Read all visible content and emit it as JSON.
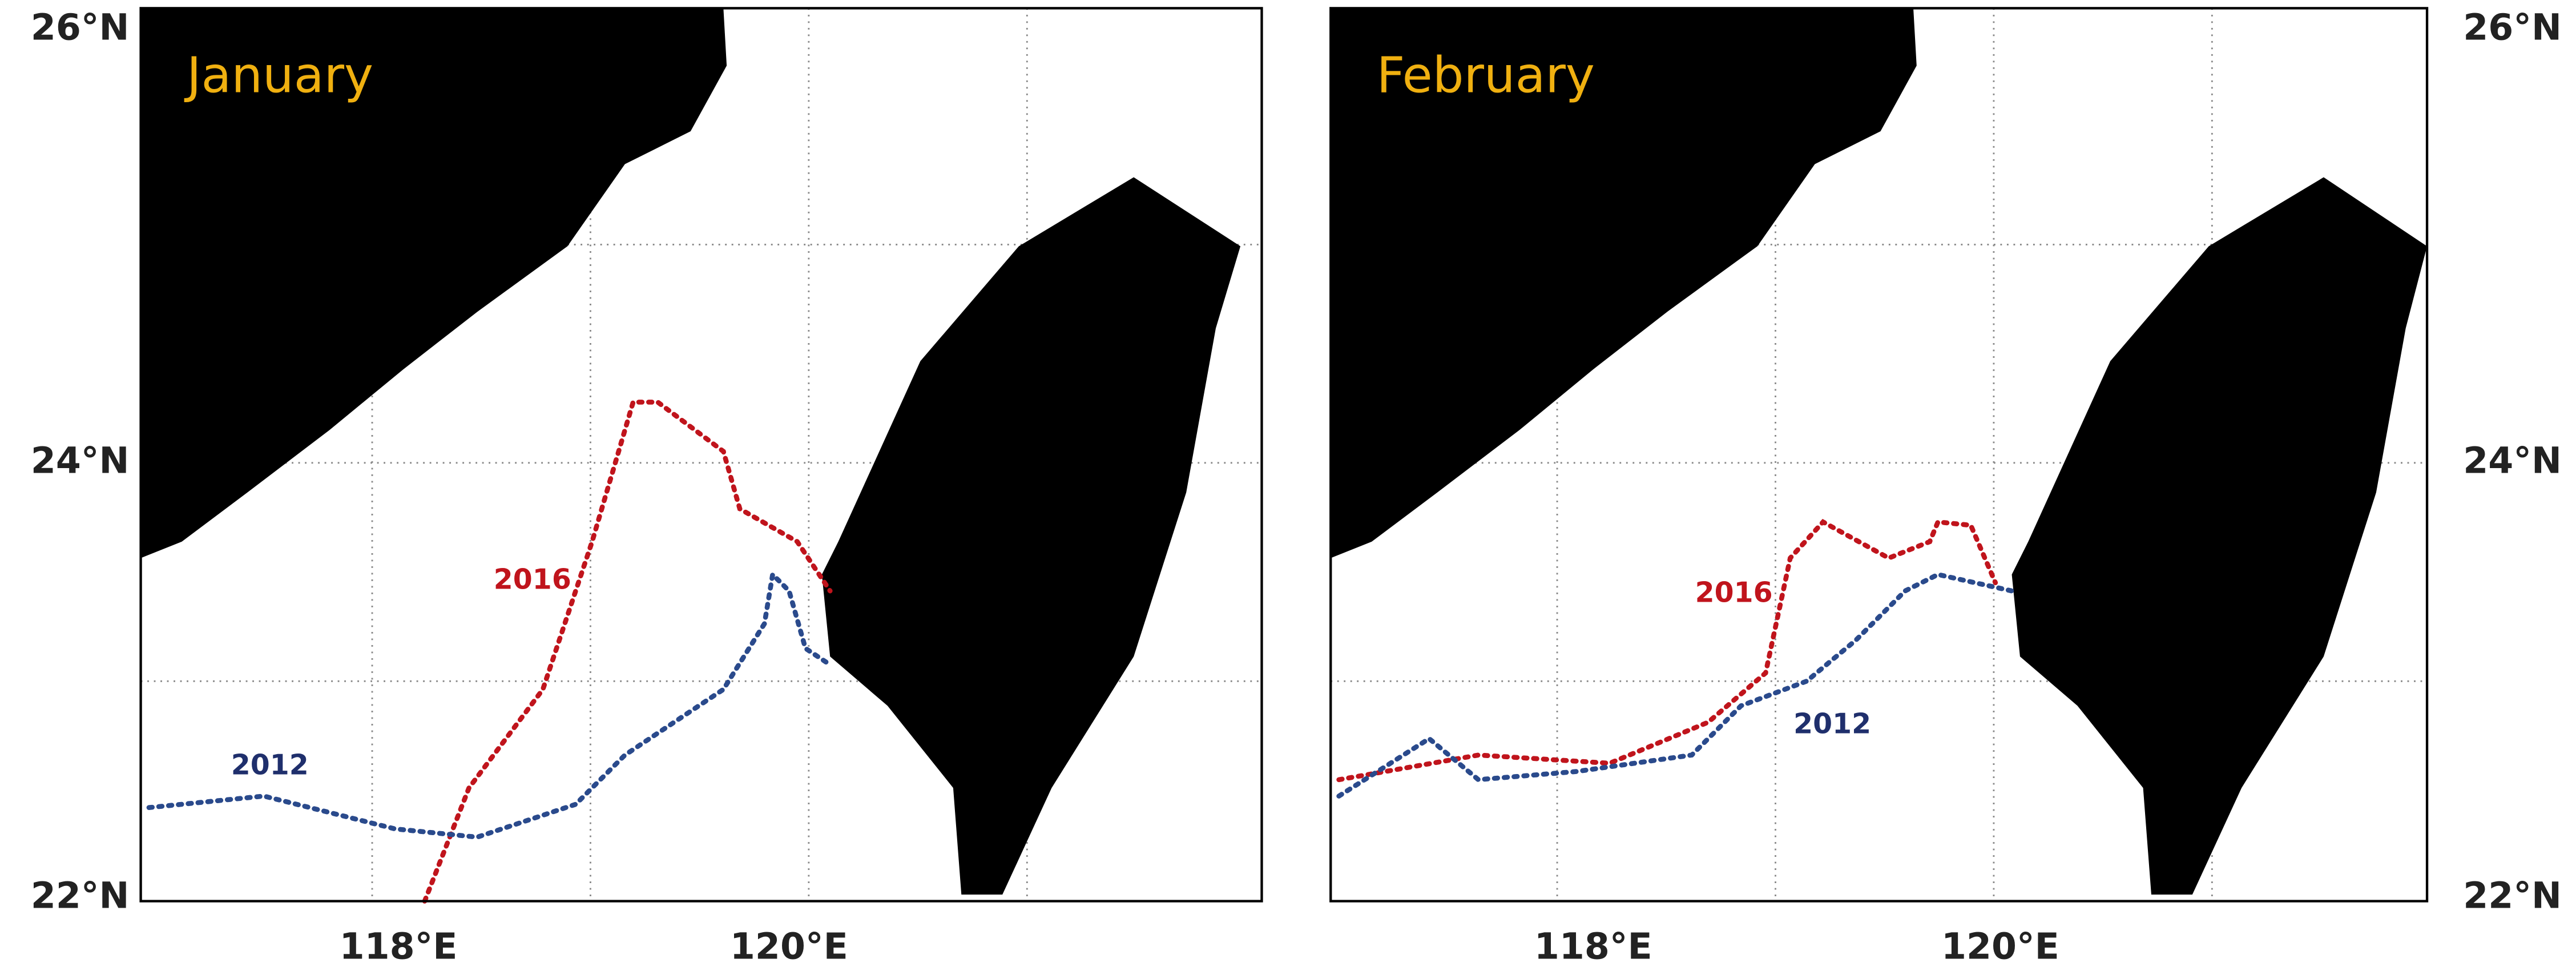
{
  "panels": [
    {
      "title": "January",
      "lat_labels": [
        "26°N",
        "24°N",
        "22°N"
      ],
      "lon_labels": [
        "118°E",
        "120°E"
      ],
      "contour_labels": [
        "2016",
        "2012"
      ]
    },
    {
      "title": "February",
      "lat_labels": [
        "26°N",
        "24°N",
        "22°N"
      ],
      "lon_labels": [
        "118°E",
        "120°E"
      ],
      "contour_labels": [
        "2016",
        "2012"
      ]
    }
  ]
}
